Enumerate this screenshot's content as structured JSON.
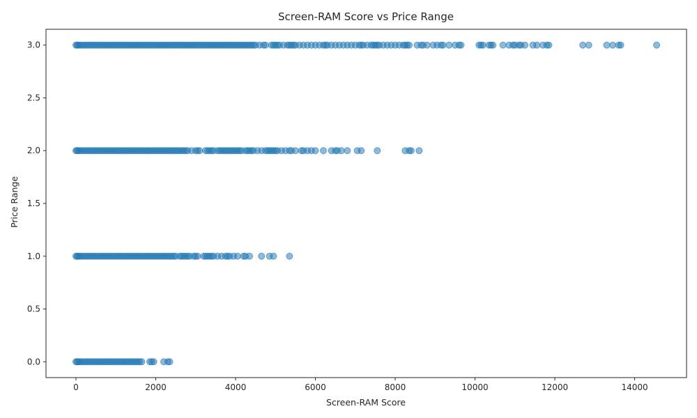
{
  "chart_data": {
    "type": "scatter",
    "title": "Screen-RAM Score vs Price Range",
    "xlabel": "Screen-RAM Score",
    "ylabel": "Price Range",
    "xlim": [
      -750,
      15300
    ],
    "ylim": [
      -0.15,
      3.15
    ],
    "x_ticks": [
      0,
      2000,
      4000,
      6000,
      8000,
      10000,
      12000,
      14000
    ],
    "x_tick_labels": [
      "0",
      "2000",
      "4000",
      "6000",
      "8000",
      "10000",
      "12000",
      "14000"
    ],
    "y_ticks": [
      0.0,
      0.5,
      1.0,
      1.5,
      2.0,
      2.5,
      3.0
    ],
    "y_tick_labels": [
      "0.0",
      "0.5",
      "1.0",
      "1.5",
      "2.0",
      "2.5",
      "3.0"
    ],
    "grid": false,
    "legend": "none",
    "marker_color": "#1f77b4",
    "marker_alpha": 0.5,
    "series": [
      {
        "y": 3,
        "x": [
          0,
          30,
          60,
          100,
          150,
          200,
          250,
          300,
          350,
          400,
          450,
          500,
          550,
          600,
          650,
          700,
          750,
          800,
          850,
          900,
          950,
          1000,
          1050,
          1100,
          1150,
          1200,
          1250,
          1300,
          1350,
          1400,
          1450,
          1500,
          1550,
          1600,
          1650,
          1700,
          1750,
          1800,
          1850,
          1900,
          1950,
          2000,
          2050,
          2100,
          2150,
          2200,
          2250,
          2300,
          2350,
          2400,
          2450,
          2500,
          2550,
          2600,
          2650,
          2700,
          2750,
          2800,
          2850,
          2900,
          2950,
          3000,
          3050,
          3100,
          3150,
          3200,
          3250,
          3300,
          3350,
          3400,
          3450,
          3500,
          3550,
          3600,
          3650,
          3700,
          3750,
          3800,
          3850,
          3900,
          3950,
          4000,
          4050,
          4100,
          4150,
          4200,
          4250,
          4300,
          4350,
          4400,
          4450,
          4500,
          4600,
          4700,
          4750,
          4900,
          4950,
          5000,
          5050,
          5100,
          5200,
          5300,
          5350,
          5400,
          5450,
          5500,
          5600,
          5700,
          5800,
          5900,
          6000,
          6100,
          6200,
          6250,
          6300,
          6400,
          6500,
          6600,
          6700,
          6800,
          6900,
          7000,
          7100,
          7150,
          7200,
          7300,
          7400,
          7450,
          7500,
          7550,
          7600,
          7700,
          7800,
          7900,
          8000,
          8100,
          8200,
          8250,
          8300,
          8350,
          8550,
          8650,
          8700,
          8800,
          8950,
          9050,
          9150,
          9200,
          9350,
          9500,
          9600,
          9650,
          10100,
          10150,
          10200,
          10350,
          10400,
          10450,
          10700,
          10850,
          10950,
          11000,
          11100,
          11150,
          11250,
          11450,
          11550,
          11700,
          11800,
          11850,
          12700,
          12850,
          13300,
          13450,
          13600,
          13650,
          14550
        ]
      },
      {
        "y": 2,
        "x": [
          0,
          30,
          60,
          100,
          150,
          200,
          250,
          300,
          350,
          400,
          450,
          500,
          550,
          600,
          650,
          700,
          750,
          800,
          850,
          900,
          950,
          1000,
          1050,
          1100,
          1150,
          1200,
          1250,
          1300,
          1350,
          1400,
          1450,
          1500,
          1550,
          1600,
          1650,
          1700,
          1750,
          1800,
          1850,
          1900,
          1950,
          2000,
          2050,
          2100,
          2150,
          2200,
          2250,
          2300,
          2350,
          2400,
          2450,
          2500,
          2550,
          2600,
          2650,
          2700,
          2750,
          2800,
          2900,
          3000,
          3050,
          3100,
          3250,
          3300,
          3350,
          3400,
          3450,
          3550,
          3600,
          3650,
          3700,
          3750,
          3800,
          3850,
          3900,
          3950,
          4000,
          4050,
          4100,
          4150,
          4250,
          4300,
          4350,
          4400,
          4450,
          4550,
          4650,
          4750,
          4800,
          4850,
          4900,
          4950,
          5000,
          5050,
          5150,
          5250,
          5350,
          5400,
          5500,
          5650,
          5700,
          5800,
          5900,
          6000,
          6200,
          6400,
          6500,
          6550,
          6650,
          6800,
          7050,
          7150,
          7550,
          8250,
          8350,
          8400,
          8600
        ]
      },
      {
        "y": 1,
        "x": [
          0,
          30,
          60,
          100,
          150,
          200,
          250,
          300,
          350,
          400,
          450,
          500,
          550,
          600,
          650,
          700,
          750,
          800,
          850,
          900,
          950,
          1000,
          1050,
          1100,
          1150,
          1200,
          1250,
          1300,
          1350,
          1400,
          1450,
          1500,
          1550,
          1600,
          1650,
          1700,
          1750,
          1800,
          1850,
          1900,
          1950,
          2000,
          2050,
          2100,
          2150,
          2200,
          2250,
          2300,
          2350,
          2400,
          2450,
          2500,
          2600,
          2650,
          2700,
          2750,
          2800,
          2850,
          2950,
          3000,
          3050,
          3200,
          3250,
          3300,
          3350,
          3400,
          3450,
          3550,
          3650,
          3750,
          3800,
          3850,
          3950,
          4050,
          4200,
          4250,
          4350,
          4650,
          4850,
          4950,
          5350
        ]
      },
      {
        "y": 0,
        "x": [
          0,
          30,
          60,
          100,
          150,
          200,
          250,
          300,
          350,
          400,
          450,
          500,
          550,
          600,
          650,
          700,
          750,
          800,
          850,
          900,
          950,
          1000,
          1050,
          1100,
          1150,
          1200,
          1250,
          1300,
          1350,
          1400,
          1450,
          1500,
          1550,
          1600,
          1650,
          1850,
          1900,
          1950,
          2200,
          2300,
          2350
        ]
      }
    ]
  }
}
